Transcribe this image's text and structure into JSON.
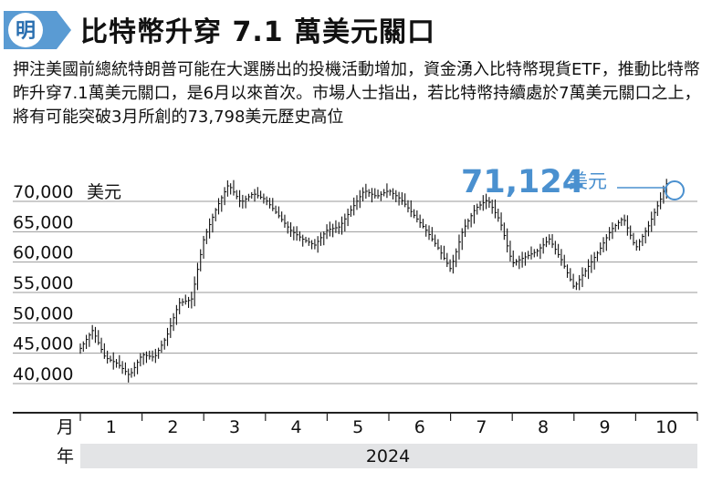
{
  "logo": {
    "text": "明",
    "name": "ming-pao-logo"
  },
  "headline": "比特幣升穿 7.1 萬美元關口",
  "blurb": "押注美國前總統特朗普可能在大選勝出的投機活動增加，資金湧入比特幣現貨ETF，推動比特幣昨升穿7.1萬美元關口，是6月以來首次。市場人士指出，若比特幣持續處於7萬美元關口之上，將有可能突破3月所創的73,798美元歷史高位",
  "chart_data": {
    "type": "line",
    "title": "",
    "xlabel": "",
    "ylabel": "",
    "y_unit_label": "美元",
    "ylim": [
      37000,
      73000
    ],
    "yticks": [
      70000,
      65000,
      60000,
      55000,
      50000,
      45000,
      40000
    ],
    "ytick_labels": [
      "70,000",
      "65,000",
      "60,000",
      "55,000",
      "50,000",
      "45,000",
      "40,000"
    ],
    "month_row_label": "月",
    "year_row_label": "年",
    "year": "2024",
    "months": [
      "1",
      "2",
      "3",
      "4",
      "5",
      "6",
      "7",
      "8",
      "9",
      "10"
    ],
    "grid": true,
    "series": [
      {
        "x": [
          "1.0",
          "1.2",
          "1.4",
          "1.6",
          "1.8",
          "2.0",
          "2.2",
          "2.4",
          "2.6",
          "2.8",
          "3.0",
          "3.2",
          "3.4",
          "3.6",
          "3.8",
          "4.0",
          "4.2",
          "4.4",
          "4.6",
          "4.8",
          "5.0",
          "5.2",
          "5.4",
          "5.6",
          "5.8",
          "6.0",
          "6.2",
          "6.4",
          "6.6",
          "6.8",
          "7.0",
          "7.2",
          "7.4",
          "7.6",
          "7.8",
          "8.0",
          "8.2",
          "8.4",
          "8.6",
          "8.8",
          "9.0",
          "9.2",
          "9.4",
          "9.6",
          "9.8",
          "10.0",
          "10.2",
          "10.4",
          "10.5"
        ],
        "values": [
          44000,
          47000,
          42500,
          41500,
          39500,
          43000,
          42500,
          46000,
          51500,
          52000,
          62000,
          67000,
          71000,
          68000,
          69500,
          68500,
          66000,
          63500,
          62000,
          61000,
          63500,
          64000,
          67000,
          70000,
          69000,
          70000,
          68500,
          66000,
          63500,
          60500,
          57000,
          63500,
          67000,
          68500,
          65000,
          58000,
          59000,
          60000,
          62000,
          58500,
          54000,
          57000,
          60000,
          63500,
          65500,
          60500,
          64000,
          68500,
          71124
        ],
        "ohlc_style": true
      }
    ],
    "annotation": {
      "value": "71,124",
      "unit": "美元"
    }
  }
}
